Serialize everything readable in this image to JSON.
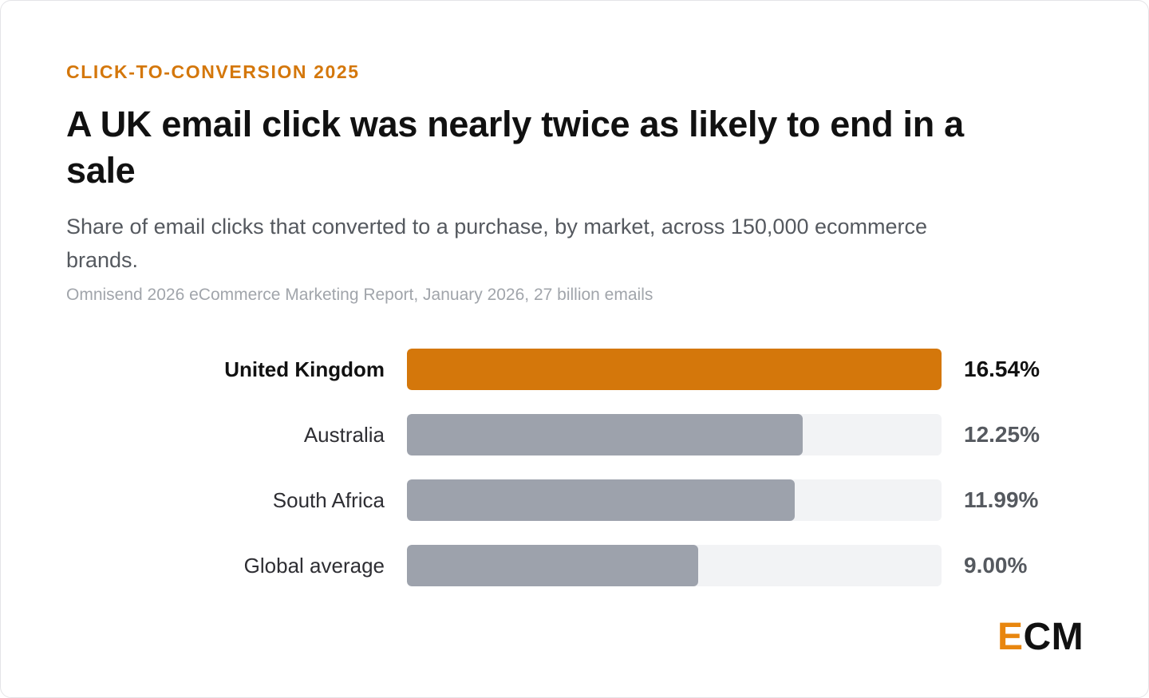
{
  "eyebrow": "CLICK-TO-CONVERSION 2025",
  "title": "A UK email click was nearly twice as likely to end in a sale",
  "subtitle": "Share of email clicks that converted to a purchase, by market, across 150,000 ecommerce brands.",
  "source": "Omnisend 2026 eCommerce Marketing Report, January 2026, 27 billion emails",
  "logo": {
    "first": "E",
    "rest": "CM"
  },
  "colors": {
    "accent": "#d4770b",
    "bar": "#9da2ac",
    "track": "#f2f3f5"
  },
  "chart_data": {
    "type": "bar",
    "orientation": "horizontal",
    "categories": [
      "United Kingdom",
      "Australia",
      "South Africa",
      "Global average"
    ],
    "values": [
      16.54,
      12.25,
      11.99,
      9.0
    ],
    "value_labels": [
      "16.54%",
      "12.25%",
      "11.99%",
      "9.00%"
    ],
    "highlight": "United Kingdom",
    "xlim": [
      0,
      16.54
    ],
    "unit": "%",
    "grid": false,
    "legend": "none"
  }
}
